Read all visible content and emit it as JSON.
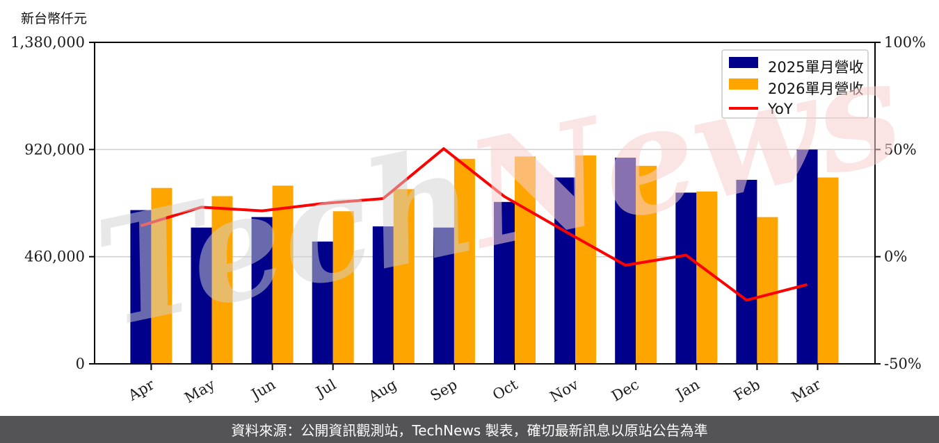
{
  "chart_data": {
    "type": "bar+line",
    "title": "",
    "categories": [
      "Apr",
      "May",
      "Jun",
      "Jul",
      "Aug",
      "Sep",
      "Oct",
      "Nov",
      "Dec",
      "Jan",
      "Feb",
      "Mar"
    ],
    "series": [
      {
        "name": "2025單月營收",
        "type": "bar",
        "axis": "left",
        "color": "#00008B",
        "values": [
          660000,
          585000,
          630000,
          525000,
          590000,
          585000,
          695000,
          800000,
          885000,
          735000,
          790000,
          920000
        ]
      },
      {
        "name": "2026單月營收",
        "type": "bar",
        "axis": "left",
        "color": "#FFA500",
        "values": [
          755000,
          720000,
          765000,
          655000,
          750000,
          880000,
          890000,
          895000,
          850000,
          740000,
          630000,
          800000
        ]
      },
      {
        "name": "YoY",
        "type": "line",
        "axis": "right",
        "color": "#FF0000",
        "unit": "%",
        "values": [
          14.4,
          23.1,
          21.4,
          24.8,
          27.1,
          50.4,
          28.1,
          11.9,
          -4.0,
          0.7,
          -20.3,
          -13.0
        ]
      }
    ],
    "left_axis": {
      "title": "新台幣仟元",
      "min": 0,
      "max": 1380000,
      "tick_values": [
        0,
        460000,
        920000,
        1380000
      ],
      "tick_labels": [
        "0",
        "460,000",
        "920,000",
        "1,380,000"
      ]
    },
    "right_axis": {
      "min": -50,
      "max": 100,
      "tick_values": [
        -50,
        0,
        50,
        100
      ],
      "tick_labels": [
        "-50%",
        "0%",
        "50%",
        "100%"
      ]
    },
    "grid": true,
    "legend": {
      "position": "top-right",
      "entries": [
        "2025單月營收",
        "2026單月營收",
        "YoY"
      ]
    }
  },
  "colors": {
    "bar_2025": "#00008B",
    "bar_2026": "#FFA500",
    "yoy_line": "#FF0000",
    "grid": "#d0d0d0",
    "axis": "#000000",
    "tick_label": "#1a1a1a",
    "legend_border": "#c8c8c8",
    "legend_bg": "#ffffff",
    "footer_bg": "#545456",
    "footer_text": "#ffffff"
  },
  "watermark": {
    "text": "TechNews",
    "segments": [
      {
        "text": "Tech",
        "color": "rgba(210,210,210,0.5)"
      },
      {
        "text": "News",
        "color": "rgba(247,205,205,0.55)"
      }
    ]
  },
  "footer": {
    "text": "資料來源：公開資訊觀測站，TechNews 製表，確切最新訊息以原站公告為準"
  }
}
